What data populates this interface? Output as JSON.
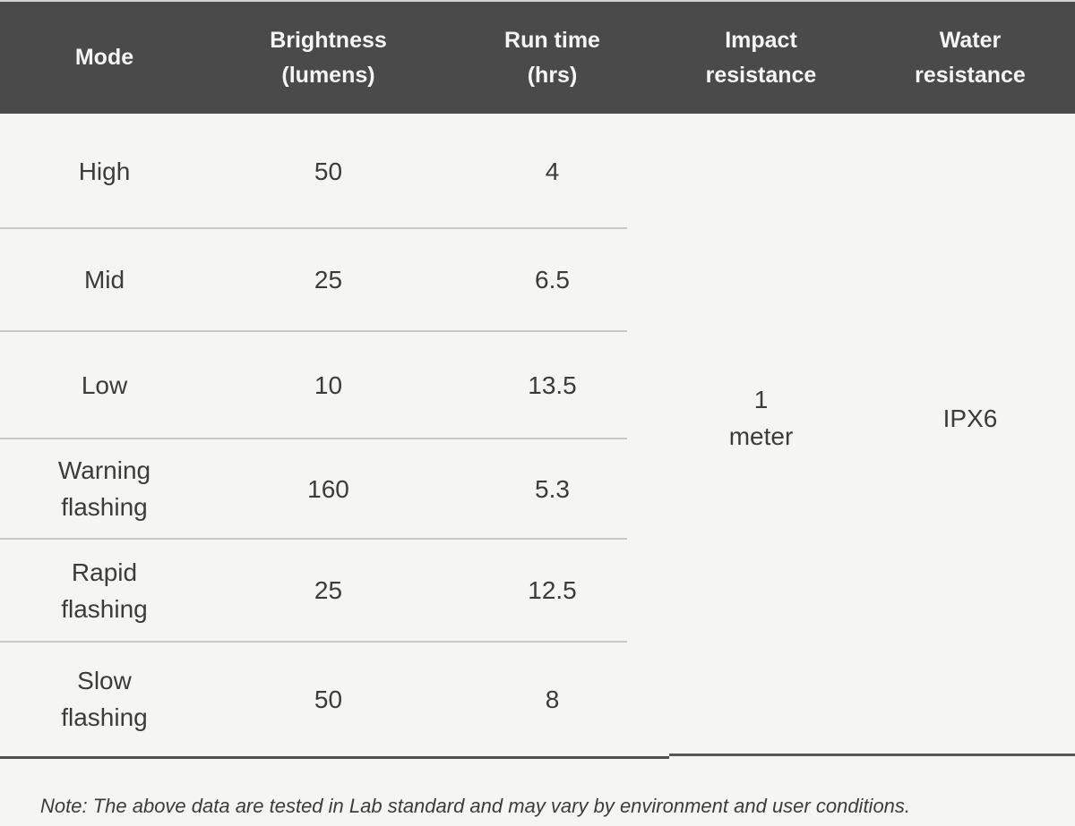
{
  "table": {
    "headers": [
      "Mode",
      "Brightness\n(lumens)",
      "Run time\n(hrs)",
      "Impact\nresistance",
      "Water\nresistance"
    ],
    "rows": [
      {
        "mode": "High",
        "brightness": "50",
        "run_time": "4"
      },
      {
        "mode": "Mid",
        "brightness": "25",
        "run_time": "6.5"
      },
      {
        "mode": "Low",
        "brightness": "10",
        "run_time": "13.5"
      },
      {
        "mode": "Warning\nflashing",
        "brightness": "160",
        "run_time": "5.3"
      },
      {
        "mode": "Rapid\nflashing",
        "brightness": "25",
        "run_time": "12.5"
      },
      {
        "mode": "Slow\nflashing",
        "brightness": "50",
        "run_time": "8"
      }
    ],
    "merged_cells": {
      "impact_resistance": "1\nmeter",
      "water_resistance": "IPX6"
    }
  },
  "note": "Note: The above data are tested in Lab standard and may vary by environment and user conditions.",
  "colors": {
    "header_bg": "#4b4a4a",
    "header_text": "#f5f5f5",
    "body_bg": "#f5f5f4",
    "body_text": "#3b3b3b",
    "row_separator": "#c8c8c8",
    "bottom_border": "#4f4f4f"
  }
}
